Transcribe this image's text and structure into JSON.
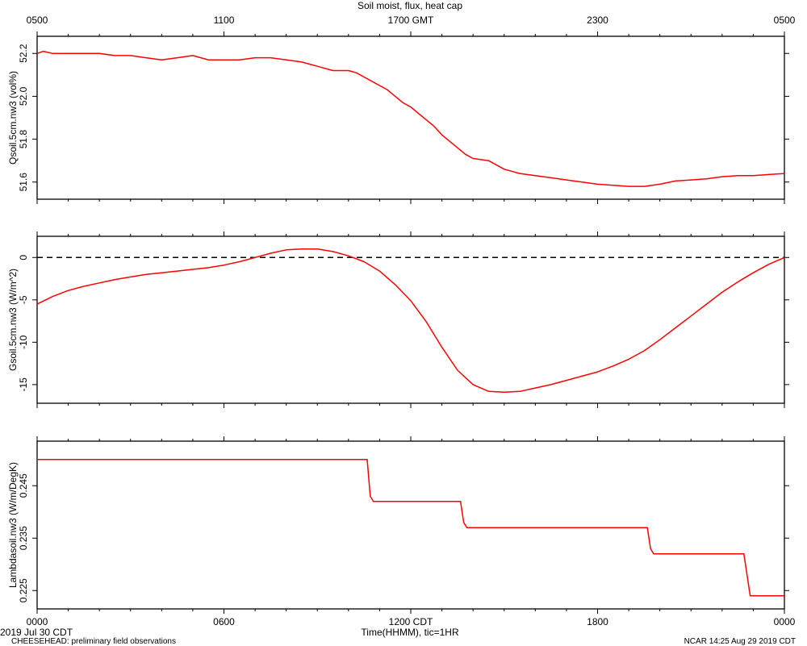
{
  "chart_data": {
    "title": "Soil moist, flux, heat cap",
    "top_axis": {
      "label_suffix": "GMT",
      "ticks": [
        {
          "hour": 0,
          "label": "0500"
        },
        {
          "hour": 6,
          "label": "1100"
        },
        {
          "hour": 12,
          "label": "1700"
        },
        {
          "hour": 18,
          "label": "2300"
        },
        {
          "hour": 24,
          "label": "0500"
        }
      ]
    },
    "bottom_axis": {
      "ticks": [
        {
          "hour": 0,
          "label": "0000"
        },
        {
          "hour": 6,
          "label": "0600"
        },
        {
          "hour": 12,
          "label": "1200 CDT"
        },
        {
          "hour": 18,
          "label": "1800"
        },
        {
          "hour": 24,
          "label": "0000"
        }
      ],
      "xlabel": "Time(HHMM), tic=1HR",
      "date_label": "2019 Jul 30 CDT"
    },
    "footer_left": "CHEESEHEAD: preliminary field observations",
    "footer_right": "NCAR 14:25 Aug 29 2019 CDT",
    "panels": [
      {
        "type": "line",
        "ylabel": "Qsoil.5cm.nw3 (vol%)",
        "ylim": [
          51.52,
          52.28
        ],
        "yticks": [
          51.6,
          51.8,
          52.0,
          52.2
        ],
        "ytick_labels": [
          "51.6",
          "51.8",
          "52.0",
          "52.2"
        ],
        "x_unit": "hours since 0000 CDT",
        "x": [
          0,
          0.2,
          0.5,
          1,
          1.5,
          2,
          2.5,
          3,
          3.5,
          4,
          4.5,
          5,
          5.5,
          6,
          6.5,
          7,
          7.5,
          8,
          8.5,
          9,
          9.5,
          10,
          10.25,
          10.5,
          10.75,
          11,
          11.25,
          11.5,
          11.75,
          12,
          12.25,
          12.5,
          12.75,
          13,
          13.25,
          13.5,
          13.75,
          14,
          14.5,
          15,
          15.5,
          16,
          16.5,
          17,
          17.5,
          18,
          18.5,
          19,
          19.5,
          20,
          20.5,
          21,
          21.5,
          22,
          22.5,
          23,
          23.5,
          24
        ],
        "series": [
          {
            "color": "#ff0000",
            "values": [
              52.2,
              52.21,
              52.2,
              52.2,
              52.2,
              52.2,
              52.19,
              52.19,
              52.18,
              52.17,
              52.18,
              52.19,
              52.17,
              52.17,
              52.17,
              52.18,
              52.18,
              52.17,
              52.16,
              52.14,
              52.12,
              52.12,
              52.11,
              52.09,
              52.07,
              52.05,
              52.03,
              52.0,
              51.97,
              51.95,
              51.92,
              51.89,
              51.86,
              51.82,
              51.79,
              51.76,
              51.73,
              51.71,
              51.7,
              51.66,
              51.64,
              51.63,
              51.62,
              51.61,
              51.6,
              51.59,
              51.585,
              51.58,
              51.58,
              51.59,
              51.605,
              51.61,
              51.615,
              51.625,
              51.63,
              51.63,
              51.635,
              51.64
            ]
          }
        ]
      },
      {
        "type": "line",
        "ylabel": "Gsoil.5cm.nw3 (W/m^2)",
        "ylim": [
          -17.2,
          2.5
        ],
        "yticks": [
          -15,
          -10,
          -5,
          0
        ],
        "ytick_labels": [
          "-15",
          "-10",
          "-5",
          "0"
        ],
        "zero_line": true,
        "x": [
          0,
          0.5,
          1,
          1.5,
          2,
          2.5,
          3,
          3.5,
          4,
          4.5,
          5,
          5.5,
          6,
          6.5,
          7,
          7.5,
          8,
          8.5,
          9,
          9.5,
          10,
          10.5,
          11,
          11.5,
          12,
          12.5,
          13,
          13.5,
          14,
          14.5,
          15,
          15.5,
          16,
          16.5,
          17,
          17.5,
          18,
          18.5,
          19,
          19.5,
          20,
          20.5,
          21,
          21.5,
          22,
          22.5,
          23,
          23.5,
          24
        ],
        "series": [
          {
            "color": "#ff0000",
            "values": [
              -5.5,
              -4.6,
              -3.9,
              -3.4,
              -3.0,
              -2.6,
              -2.3,
              -2.0,
              -1.8,
              -1.6,
              -1.4,
              -1.2,
              -0.9,
              -0.5,
              0.0,
              0.5,
              0.9,
              1.0,
              1.0,
              0.7,
              0.2,
              -0.5,
              -1.6,
              -3.2,
              -5.1,
              -7.6,
              -10.6,
              -13.3,
              -15.0,
              -15.8,
              -15.9,
              -15.8,
              -15.4,
              -15.0,
              -14.5,
              -14.0,
              -13.5,
              -12.8,
              -12.0,
              -11.0,
              -9.7,
              -8.3,
              -6.9,
              -5.5,
              -4.1,
              -2.9,
              -1.8,
              -0.8,
              0.0
            ]
          }
        ]
      },
      {
        "type": "line",
        "ylabel": "Lambdasoil.nw3 (W/m/DegK)",
        "ylim": [
          0.2215,
          0.2535
        ],
        "yticks": [
          0.225,
          0.235,
          0.245
        ],
        "ytick_labels": [
          "0.225",
          "0.235",
          "0.245"
        ],
        "x": [
          0,
          10.6,
          10.7,
          10.8,
          13.6,
          13.7,
          13.8,
          19.6,
          19.7,
          19.8,
          22.7,
          22.8,
          22.9,
          24
        ],
        "series": [
          {
            "color": "#ff0000",
            "values": [
              0.25,
              0.25,
              0.243,
              0.242,
              0.242,
              0.238,
              0.237,
              0.237,
              0.233,
              0.232,
              0.232,
              0.228,
              0.224,
              0.224
            ]
          }
        ]
      }
    ]
  }
}
